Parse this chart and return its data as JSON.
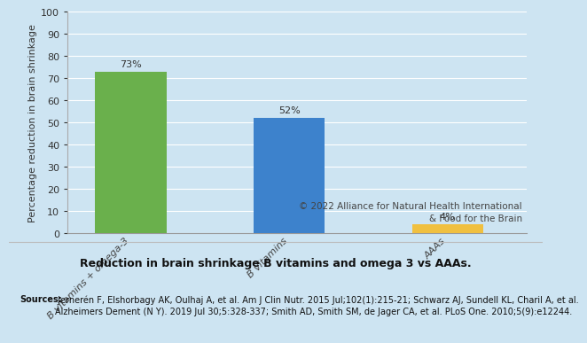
{
  "categories": [
    "B vitamins + omega-3",
    "B vitamins",
    "AAAs"
  ],
  "values": [
    73,
    52,
    4
  ],
  "bar_colors": [
    "#6ab04c",
    "#3d82cc",
    "#f0c040"
  ],
  "labels": [
    "73%",
    "52%",
    "4%"
  ],
  "ylabel": "Percentage reduction in brain shrinkage",
  "ylim": [
    0,
    100
  ],
  "yticks": [
    0,
    10,
    20,
    30,
    40,
    50,
    60,
    70,
    80,
    90,
    100
  ],
  "chart_bg_color": "#cde4f2",
  "outer_bg_color": "#cde4f2",
  "bottom_bg_color": "#f0f4f8",
  "title": "Reduction in brain shrinkage B vitamins and omega 3 vs AAAs.",
  "copyright_line1": "© 2022 Alliance for Natural Health International",
  "copyright_line2": "& Food for the Brain",
  "sources_bold": "Sources:",
  "sources_rest": " Jernerén F, Elshorbagy AK, Oulhaj A, et al. Am J Clin Nutr. 2015 Jul;102(1):215-21; Schwarz AJ, Sundell KL, Charil A, et al.\nAlzheimers Dement (N Y). 2019 Jul 30;5:328-337; Smith AD, Smith SM, de Jager CA, et al. PLoS One. 2010;5(9):e12244.",
  "bar_width": 0.45,
  "label_fontsize": 8,
  "ylabel_fontsize": 8,
  "tick_fontsize": 8,
  "xtick_fontsize": 8,
  "title_fontsize": 9,
  "copyright_fontsize": 7.5,
  "sources_fontsize": 7.0
}
